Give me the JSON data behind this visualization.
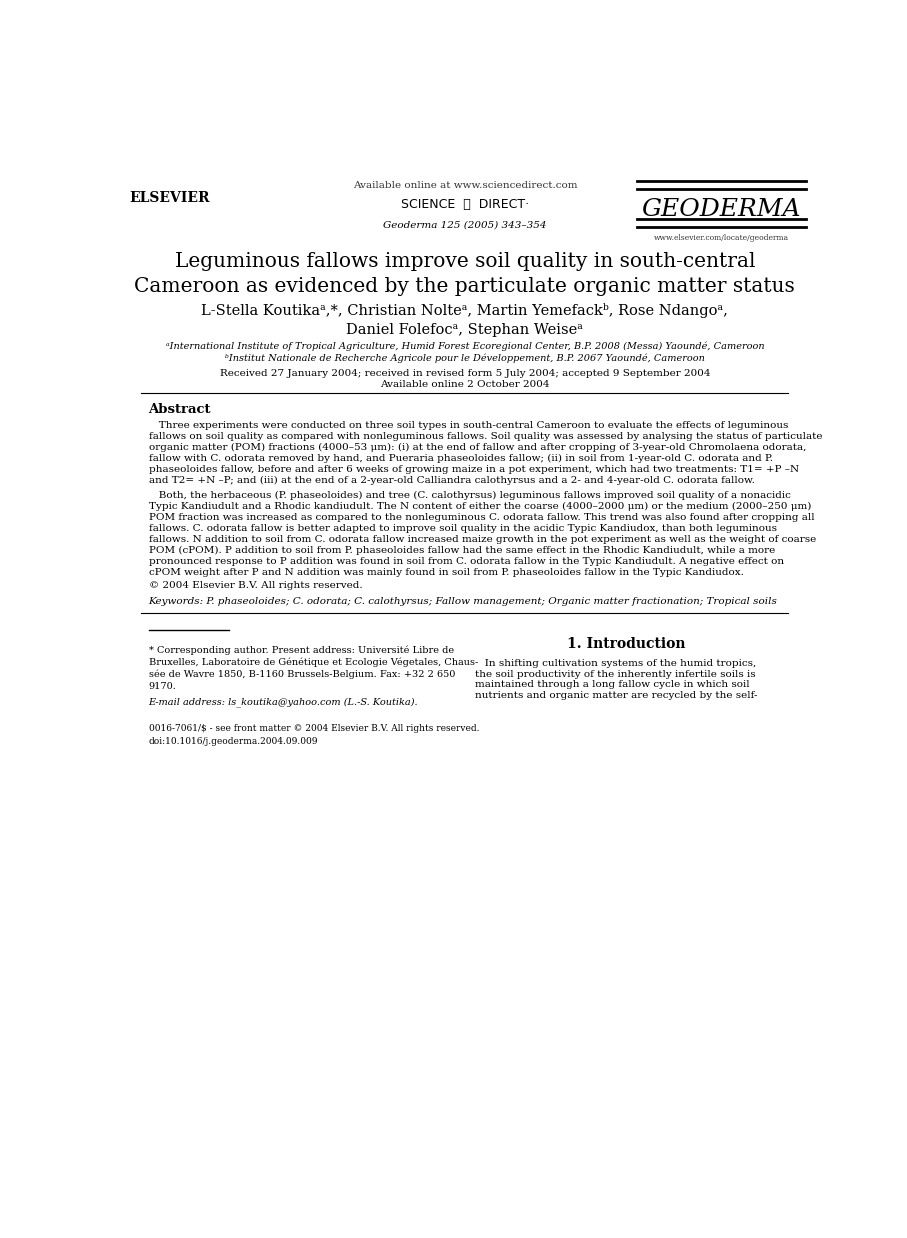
{
  "bg_color": "#ffffff",
  "text_color": "#000000",
  "page_width": 9.07,
  "page_height": 12.38,
  "header": {
    "available_online": "Available online at www.sciencedirect.com",
    "sciencedirect": "SCIENCE  ⓓ  DIRECT·",
    "geoderma_journal": "Geoderma 125 (2005) 343–354",
    "elsevier_label": "ELSEVIER",
    "geoderma_title": "GEODERMA",
    "website": "www.elsevier.com/locate/geoderma"
  },
  "title": "Leguminous fallows improve soil quality in south-central\nCameroon as evidenced by the particulate organic matter status",
  "authors": "L-Stella Koutikaᵃ,*, Christian Nolteᵃ, Martin Yemefackᵇ, Rose Ndangoᵃ,\nDaniel Folefocᵃ, Stephan Weiseᵃ",
  "affil_a": "ᵃInternational Institute of Tropical Agriculture, Humid Forest Ecoregional Center, B.P. 2008 (Messa) Yaoundé, Cameroon",
  "affil_b": "ᵇInstitut Nationale de Recherche Agricole pour le Développement, B.P. 2067 Yaoundé, Cameroon",
  "received": "Received 27 January 2004; received in revised form 5 July 2004; accepted 9 September 2004",
  "available": "Available online 2 October 2004",
  "abstract_title": "Abstract",
  "copyright": "© 2004 Elsevier B.V. All rights reserved.",
  "keywords": "Keywords: P. phaseoloides; C. odorata; C. calothyrsus; Fallow management; Organic matter fractionation; Tropical soils",
  "footnote_star_lines": [
    "* Corresponding author. Present address: Université Libre de",
    "Bruxelles, Laboratoire de Génétique et Ecologie Végetales, Chaus-",
    "sée de Wavre 1850, B-1160 Brussels-Belgium. Fax: +32 2 650",
    "9170."
  ],
  "footnote_email": "E-mail address: ls_koutika@yahoo.com (L.-S. Koutika).",
  "footer_issn": "0016-7061/$ - see front matter © 2004 Elsevier B.V. All rights reserved.",
  "footer_doi": "doi:10.1016/j.geoderma.2004.09.009",
  "intro_title": "1. Introduction",
  "abs1_lines": [
    "   Three experiments were conducted on three soil types in south-central Cameroon to evaluate the effects of leguminous",
    "fallows on soil quality as compared with nonleguminous fallows. Soil quality was assessed by analysing the status of particulate",
    "organic matter (POM) fractions (4000–53 μm): (i) at the end of fallow and after cropping of 3-year-old Chromolaena odorata,",
    "fallow with C. odorata removed by hand, and Pueraria phaseoloides fallow; (ii) in soil from 1-year-old C. odorata and P.",
    "phaseoloides fallow, before and after 6 weeks of growing maize in a pot experiment, which had two treatments: T1= +P –N",
    "and T2= +N –P; and (iii) at the end of a 2-year-old Calliandra calothyrsus and a 2- and 4-year-old C. odorata fallow."
  ],
  "abs2_lines": [
    "   Both, the herbaceous (P. phaseoloides) and tree (C. calothyrsus) leguminous fallows improved soil quality of a nonacidic",
    "Typic Kandiudult and a Rhodic kandiudult. The N content of either the coarse (4000–2000 μm) or the medium (2000–250 μm)",
    "POM fraction was increased as compared to the nonleguminous C. odorata fallow. This trend was also found after cropping all",
    "fallows. C. odorata fallow is better adapted to improve soil quality in the acidic Typic Kandiudox, than both leguminous",
    "fallows. N addition to soil from C. odorata fallow increased maize growth in the pot experiment as well as the weight of coarse",
    "POM (cPOM). P addition to soil from P. phaseoloides fallow had the same effect in the Rhodic Kandiudult, while a more",
    "pronounced response to P addition was found in soil from C. odorata fallow in the Typic Kandiudult. A negative effect on",
    "cPOM weight after P and N addition was mainly found in soil from P. phaseoloides fallow in the Typic Kandiudox."
  ],
  "intro_lines": [
    "   In shifting cultivation systems of the humid tropics,",
    "the soil productivity of the inherently infertile soils is",
    "maintained through a long fallow cycle in which soil",
    "nutrients and organic matter are recycled by the self-"
  ]
}
